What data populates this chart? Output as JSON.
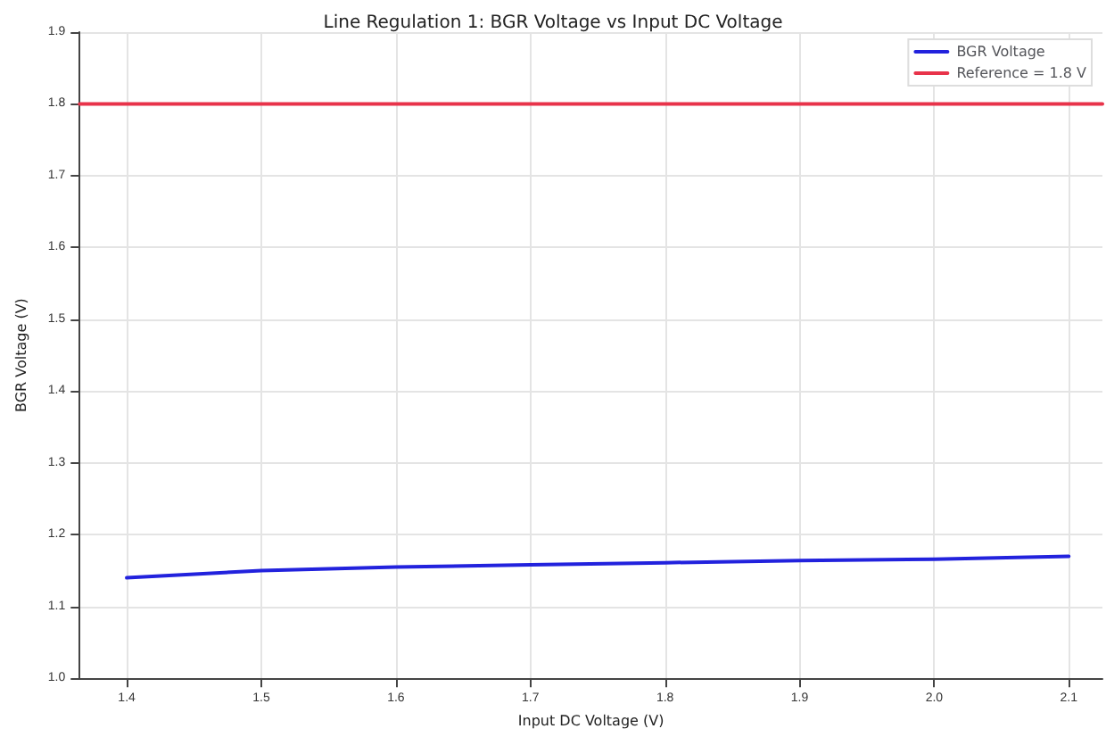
{
  "chart_data": {
    "type": "line",
    "title": "Line Regulation 1: BGR Voltage vs Input DC Voltage",
    "xlabel": "Input DC Voltage (V)",
    "ylabel": "BGR Voltage (V)",
    "x": [
      1.4,
      1.5,
      1.6,
      1.7,
      1.8,
      1.9,
      2.0,
      2.1
    ],
    "series": [
      {
        "name": "BGR Voltage",
        "color": "#2222dd",
        "values": [
          1.14,
          1.15,
          1.155,
          1.158,
          1.161,
          1.164,
          1.166,
          1.17
        ]
      },
      {
        "name": "Reference = 1.8 V",
        "color": "#e8334a",
        "x": [
          1.365,
          2.125
        ],
        "values": [
          1.8,
          1.8
        ]
      }
    ],
    "xlim": [
      1.365,
      2.125
    ],
    "xticks": [
      1.4,
      1.5,
      1.6,
      1.7,
      1.8,
      1.9,
      {
        "value": 2.0,
        "label": "2.0"
      },
      2.1
    ],
    "ylim": [
      1.0,
      1.9
    ],
    "yticks": [
      {
        "value": 1.0,
        "label": "1.0"
      },
      1.1,
      1.2,
      1.3,
      1.4,
      1.5,
      1.6,
      1.7,
      1.8,
      1.9
    ],
    "grid": true,
    "legend": "top right",
    "marker": "none",
    "line_style": "solid"
  }
}
